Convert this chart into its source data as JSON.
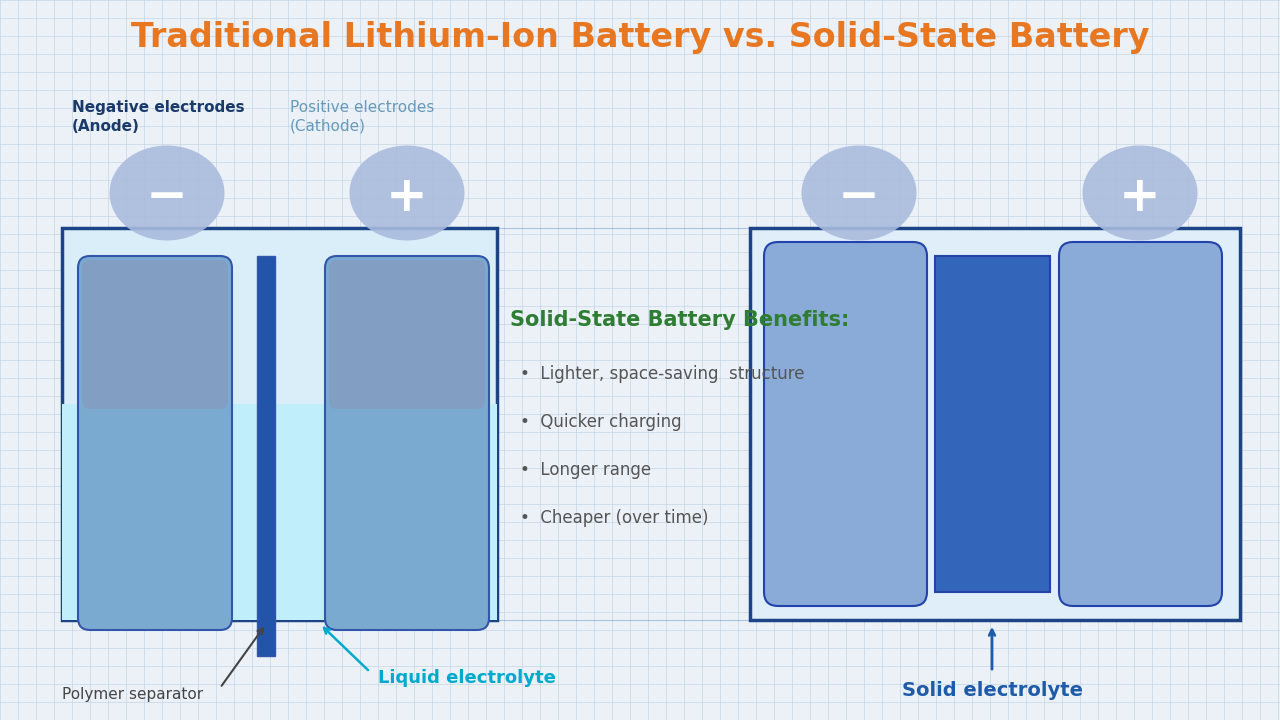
{
  "title": "Traditional Lithium-Ion Battery vs. Solid-State Battery",
  "title_color": "#E87722",
  "bg_color": "#EBF1F7",
  "grid_color": "#C5D5E5",
  "label_neg": "Negative electrodes\n(Anode)",
  "label_pos": "Positive electrodes\n(Cathode)",
  "label_neg_color": "#1A3A6A",
  "label_pos_color": "#6699BB",
  "benefits_title": "Solid-State Battery Benefits:",
  "benefits_title_color": "#2E7D32",
  "benefits": [
    "Lighter, space-saving  structure",
    "Quicker charging",
    "Longer range",
    "Cheaper (over time)"
  ],
  "benefits_color": "#555555",
  "liquid_label": "Liquid electrolyte",
  "liquid_label_color": "#00AACC",
  "solid_label": "Solid electrolyte",
  "solid_label_color": "#1E5BA8",
  "polymer_label": "Polymer separator",
  "polymer_label_color": "#444444",
  "li_box_facecolor": "#DAEEFA",
  "li_box_border": "#1E4488",
  "li_liquid_color": "#C0EEFA",
  "li_electrode_body": "#7AAAD0",
  "li_electrode_top": "#8899BB",
  "li_electrode_border": "#3355AA",
  "li_sep_color": "#2255AA",
  "ss_box_facecolor": "#E0EEFA",
  "ss_box_border": "#1E4488",
  "ss_electrode_light": "#8AAAD8",
  "ss_electrode_dark": "#3366BB",
  "ss_electrode_border": "#2244AA",
  "circle_minus_color": "#AABBDD",
  "circle_plus_color": "#AABBDD",
  "circle_text_color": "#FFFFFF",
  "trapezoid_color": "#4488BB",
  "arrow_poly_color": "#444444",
  "arrow_liquid_color": "#00AACC",
  "arrow_solid_color": "#1E5BA8"
}
